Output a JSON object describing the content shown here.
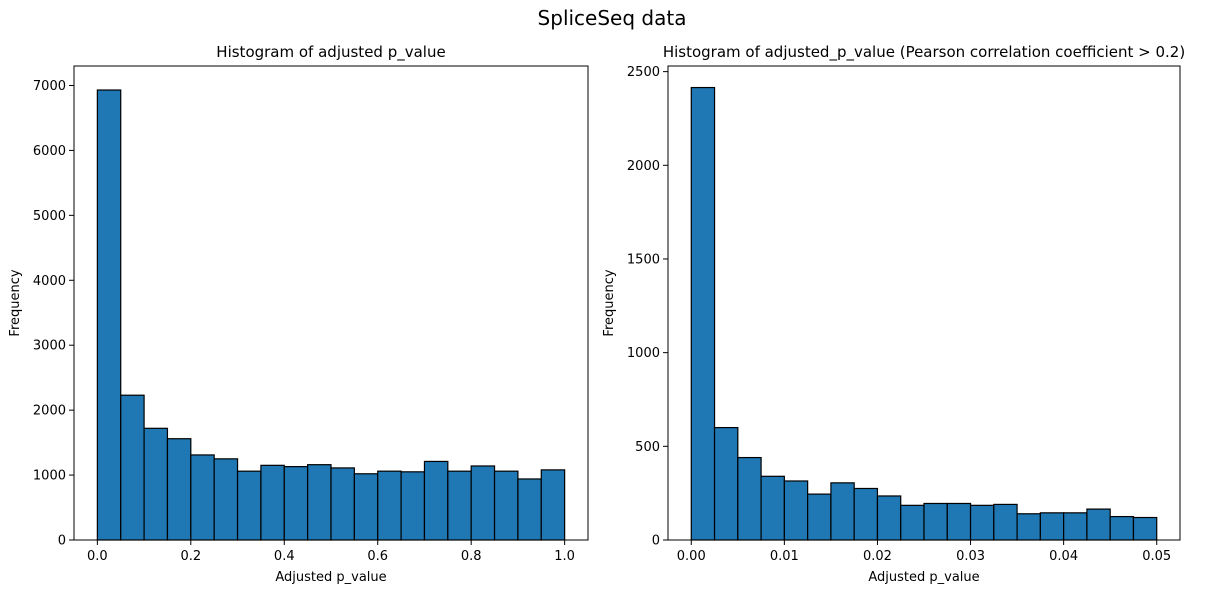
{
  "title": "SpliceSeq data",
  "chart_data": [
    {
      "type": "bar",
      "title": "Histogram of adjusted p_value",
      "xlabel": "Adjusted p_value",
      "ylabel": "Frequency",
      "bin_edges": [
        0.0,
        0.05,
        0.1,
        0.15,
        0.2,
        0.25,
        0.3,
        0.35,
        0.4,
        0.45,
        0.5,
        0.55,
        0.6,
        0.65,
        0.7,
        0.75,
        0.8,
        0.85,
        0.9,
        0.95,
        1.0
      ],
      "values": [
        6930,
        2230,
        1720,
        1560,
        1310,
        1250,
        1060,
        1150,
        1130,
        1160,
        1110,
        1020,
        1060,
        1050,
        1210,
        1060,
        1140,
        1060,
        940,
        1080
      ],
      "xlim": [
        -0.05,
        1.05
      ],
      "ylim": [
        0,
        7300
      ],
      "xticks": [
        0.0,
        0.2,
        0.4,
        0.6,
        0.8,
        1.0
      ],
      "xtick_labels": [
        "0.0",
        "0.2",
        "0.4",
        "0.6",
        "0.8",
        "1.0"
      ],
      "yticks": [
        0,
        1000,
        2000,
        3000,
        4000,
        5000,
        6000,
        7000
      ],
      "ytick_labels": [
        "0",
        "1000",
        "2000",
        "3000",
        "4000",
        "5000",
        "6000",
        "7000"
      ],
      "bar_color": "#1f77b4",
      "edge_color": "#000000",
      "grid": false
    },
    {
      "type": "bar",
      "title": "Histogram of adjusted_p_value (Pearson correlation coefficient > 0.2)",
      "xlabel": "Adjusted p_value",
      "ylabel": "Frequency",
      "bin_edges": [
        0.0,
        0.0025,
        0.005,
        0.0075,
        0.01,
        0.0125,
        0.015,
        0.0175,
        0.02,
        0.0225,
        0.025,
        0.0275,
        0.03,
        0.0325,
        0.035,
        0.0375,
        0.04,
        0.0425,
        0.045,
        0.0475,
        0.05
      ],
      "values": [
        2415,
        600,
        440,
        340,
        315,
        245,
        305,
        275,
        235,
        185,
        195,
        195,
        185,
        190,
        140,
        145,
        145,
        165,
        125,
        120
      ],
      "xlim": [
        -0.0025,
        0.0525
      ],
      "ylim": [
        0,
        2530
      ],
      "xticks": [
        0.0,
        0.01,
        0.02,
        0.03,
        0.04,
        0.05
      ],
      "xtick_labels": [
        "0.00",
        "0.01",
        "0.02",
        "0.03",
        "0.04",
        "0.05"
      ],
      "yticks": [
        0,
        500,
        1000,
        1500,
        2000,
        2500
      ],
      "ytick_labels": [
        "0",
        "500",
        "1000",
        "1500",
        "2000",
        "2500"
      ],
      "bar_color": "#1f77b4",
      "edge_color": "#000000",
      "grid": false
    }
  ]
}
